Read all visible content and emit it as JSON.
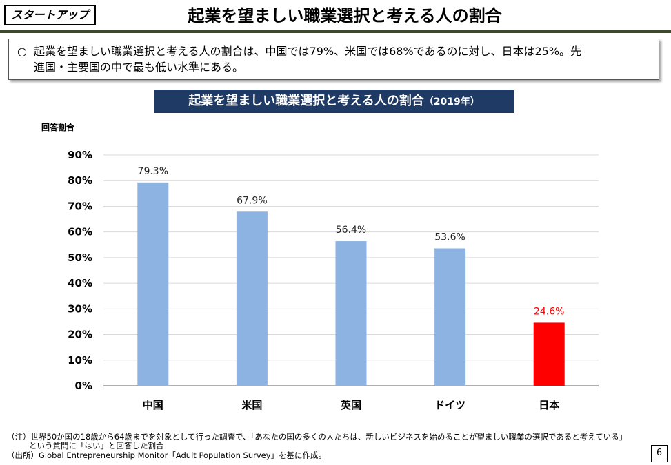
{
  "header": {
    "tag": "スタートアップ",
    "title": "起業を望ましい職業選択と考える人の割合"
  },
  "summary": {
    "bullet": "○",
    "line1": "起業を望ましい職業選択と考える人の割合は、中国では79%、米国では68%であるのに対し、日本は25%。先",
    "line2": "進国・主要国の中で最も低い水準にある。"
  },
  "chart_title": {
    "main": "起業を望ましい職業選択と考える人の割合",
    "year": "（2019年）"
  },
  "chart_data": {
    "type": "bar",
    "ylabel": "回答割合",
    "categories": [
      "中国",
      "米国",
      "英国",
      "ドイツ",
      "日本"
    ],
    "values": [
      79.3,
      67.9,
      56.4,
      53.6,
      24.6
    ],
    "value_labels": [
      "79.3%",
      "67.9%",
      "56.4%",
      "53.6%",
      "24.6%"
    ],
    "colors": [
      "#8db3e2",
      "#8db3e2",
      "#8db3e2",
      "#8db3e2",
      "#ff0000"
    ],
    "label_colors": [
      "#222222",
      "#222222",
      "#222222",
      "#222222",
      "#ff0000"
    ],
    "yticks": [
      0,
      10,
      20,
      30,
      40,
      50,
      60,
      70,
      80,
      90
    ],
    "ytick_labels": [
      "0%",
      "10%",
      "20%",
      "30%",
      "40%",
      "50%",
      "60%",
      "70%",
      "80%",
      "90%"
    ],
    "ylim": [
      0,
      90
    ],
    "grid": true,
    "grid_color": "#d9d9d9"
  },
  "notes": {
    "note1": "（注）世界50か国の18歳から64歳までを対象として行った調査で、「あなたの国の多くの人たちは、新しいビジネスを始めることが望ましい職業の選択であると考えている」",
    "note2": "という質問に「はい」と回答した割合",
    "source": "（出所）Global Entrepreneurship Monitor「Adult Population Survey」を基に作成。"
  },
  "page_number": "6"
}
